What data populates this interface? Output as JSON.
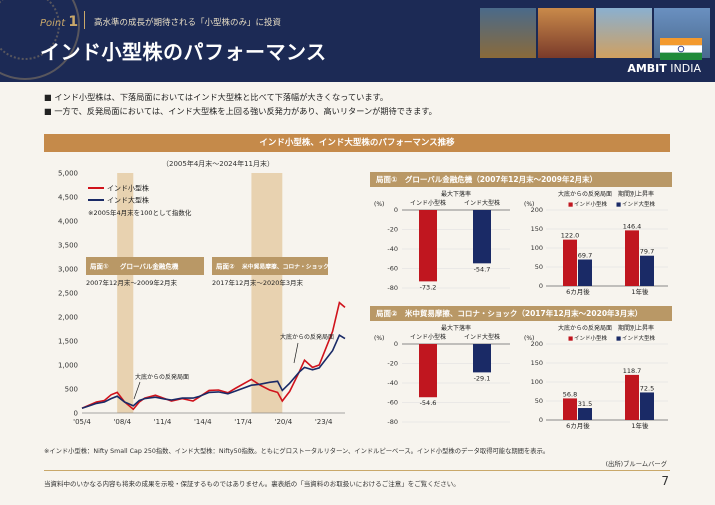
{
  "header": {
    "point_label": "Point",
    "point_number": "1",
    "subtitle": "高水準の成長が期待される「小型株のみ」に投資",
    "title": "インド小型株のパフォーマンス",
    "brand_bold": "AMBIT",
    "brand_light": " INDIA"
  },
  "bullets": [
    "インド小型株は、下落局面においてはインド大型株と比べて下落幅が大きくなっています。",
    "一方で、反発局面においては、インド大型株を上回る強い反発力があり、高いリターンが期待できます。"
  ],
  "banner": "インド小型株、インド大型株のパフォーマンス推移",
  "main_chart": {
    "period": "（2005年4月末～2024年11月末）",
    "legend": [
      "インド小型株",
      "インド大型株"
    ],
    "note": "※2005年4月末を100として指数化",
    "phase1_title": "局面①",
    "phase1_label": "グローバル金融危機",
    "phase1_dates": "2007年12月末～2009年2月末",
    "phase2_title": "局面②",
    "phase2_label": "米中貿易摩擦、コロナ・ショック",
    "phase2_dates": "2017年12月末～2020年3月末",
    "annot1": "大底からの反発局面",
    "annot2": "大底からの反発局面",
    "colors": {
      "small": "#d0121b",
      "large": "#1a2a66",
      "band": "#e8d2b0"
    }
  },
  "chart_data": [
    {
      "type": "line",
      "title": "",
      "x_ticks": [
        "'05/4",
        "'08/4",
        "'11/4",
        "'14/4",
        "'17/4",
        "'20/4",
        "'23/4"
      ],
      "y_ticks": [
        "0",
        "500",
        "1,000",
        "1,500",
        "2,000",
        "2,500",
        "3,000",
        "3,500",
        "4,000",
        "4,500",
        "5,000"
      ],
      "ylim": [
        0,
        5000
      ],
      "xlim": [
        2005.33,
        2024.92
      ],
      "series": [
        {
          "name": "インド小型株",
          "x": [
            2005.33,
            2006.0,
            2006.4,
            2007.0,
            2007.5,
            2007.95,
            2008.5,
            2009.15,
            2009.6,
            2010.0,
            2010.8,
            2011.5,
            2012.0,
            2012.8,
            2013.6,
            2014.0,
            2014.8,
            2015.5,
            2016.2,
            2016.8,
            2017.95,
            2018.6,
            2019.3,
            2019.9,
            2020.25,
            2020.8,
            2021.5,
            2021.9,
            2022.5,
            2023.0,
            2023.5,
            2024.0,
            2024.5,
            2024.92
          ],
          "y": [
            100,
            180,
            230,
            260,
            380,
            430,
            230,
            80,
            230,
            310,
            370,
            300,
            250,
            300,
            250,
            320,
            470,
            480,
            420,
            520,
            700,
            580,
            480,
            430,
            250,
            450,
            850,
            1100,
            950,
            1000,
            1350,
            1700,
            2300,
            2200
          ]
        },
        {
          "name": "インド大型株",
          "x": [
            2005.33,
            2006.0,
            2006.4,
            2007.0,
            2007.5,
            2007.95,
            2008.5,
            2009.15,
            2009.6,
            2010.0,
            2010.8,
            2011.5,
            2012.0,
            2012.8,
            2013.6,
            2014.0,
            2014.8,
            2015.5,
            2016.2,
            2016.8,
            2017.95,
            2018.6,
            2019.3,
            2019.9,
            2020.25,
            2020.8,
            2021.5,
            2021.9,
            2022.5,
            2023.0,
            2023.5,
            2024.0,
            2024.5,
            2024.92
          ],
          "y": [
            100,
            160,
            200,
            230,
            300,
            350,
            230,
            150,
            260,
            300,
            330,
            290,
            270,
            310,
            310,
            340,
            430,
            440,
            400,
            460,
            580,
            600,
            640,
            660,
            470,
            620,
            850,
            950,
            900,
            940,
            1120,
            1300,
            1620,
            1550
          ]
        }
      ]
    },
    {
      "type": "bar",
      "panel": "局面①",
      "subtitle": "最大下落率",
      "ylabel": "(%)",
      "categories": [
        "インド小型株",
        "インド大型株"
      ],
      "values": [
        -73.2,
        -54.7
      ],
      "labels": [
        "-73.2",
        "-54.7"
      ],
      "ylim": [
        -80,
        0
      ],
      "y_ticks": [
        "0",
        "-20",
        "-40",
        "-60",
        "-80"
      ]
    },
    {
      "type": "bar",
      "panel": "局面①",
      "subtitle": "大底からの反発局面　期間別上昇率",
      "ylabel": "(%)",
      "categories": [
        "6カ月後",
        "1年後"
      ],
      "series": [
        {
          "name": "インド小型株",
          "values": [
            122.0,
            146.4
          ],
          "labels": [
            "122.0",
            "146.4"
          ]
        },
        {
          "name": "インド大型株",
          "values": [
            69.7,
            79.7
          ],
          "labels": [
            "69.7",
            "79.7"
          ]
        }
      ],
      "ylim": [
        0,
        200
      ],
      "y_ticks": [
        "0",
        "50",
        "100",
        "150",
        "200"
      ]
    },
    {
      "type": "bar",
      "panel": "局面②",
      "subtitle": "最大下落率",
      "ylabel": "(%)",
      "categories": [
        "インド小型株",
        "インド大型株"
      ],
      "values": [
        -54.6,
        -29.1
      ],
      "labels": [
        "-54.6",
        "-29.1"
      ],
      "ylim": [
        -80,
        0
      ],
      "y_ticks": [
        "0",
        "-20",
        "-40",
        "-60",
        "-80"
      ]
    },
    {
      "type": "bar",
      "panel": "局面②",
      "subtitle": "大底からの反発局面　期間別上昇率",
      "ylabel": "(%)",
      "categories": [
        "6カ月後",
        "1年後"
      ],
      "series": [
        {
          "name": "インド小型株",
          "values": [
            56.8,
            118.7
          ],
          "labels": [
            "56.8",
            "118.7"
          ]
        },
        {
          "name": "インド大型株",
          "values": [
            31.5,
            72.5
          ],
          "labels": [
            "31.5",
            "72.5"
          ]
        }
      ],
      "ylim": [
        0,
        200
      ],
      "y_ticks": [
        "0",
        "50",
        "100",
        "150",
        "200"
      ]
    }
  ],
  "panels": {
    "p1_header": "局面①　グローバル金融危機（2007年12月末～2009年2月末）",
    "p2_header": "局面②　米中貿易摩擦、コロナ・ショック（2017年12月末～2020年3月末）",
    "legend_mark": "■"
  },
  "footnote": "※インド小型株：Nifty Small Cap 250指数、インド大型株：Nifty50指数。ともにグロストータルリターン、インドルピーベース。インド小型株のデータ取得可能な期間を表示。",
  "source": "(出所)ブルームバーグ",
  "disclaimer": "当資料中のいかなる内容も将来の成果を示唆・保証するものではありません。裏表紙の「当資料のお取扱いにおけるご注意」をご覧ください。",
  "page_number": "7"
}
